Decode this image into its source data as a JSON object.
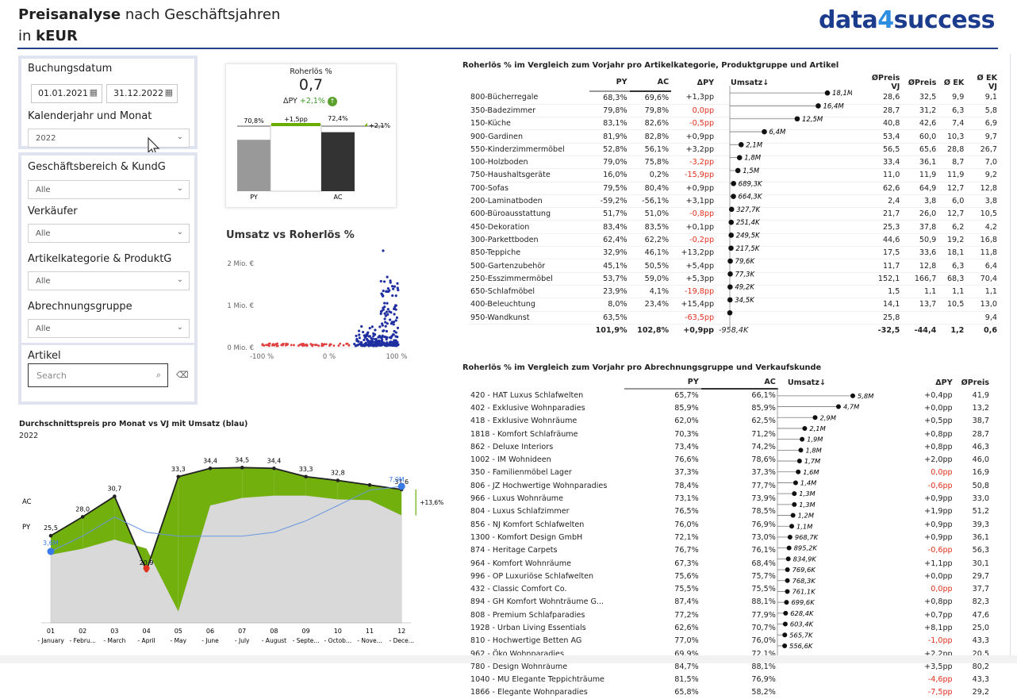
{
  "header": {
    "title_bold": "Preisanalyse",
    "title_rest": " nach Geschäftsjahren",
    "subtitle_pre": "in ",
    "subtitle_bold": "kEUR",
    "logo_a": "data",
    "logo_4": "4",
    "logo_b": "success"
  },
  "slicers": {
    "buchungsdatum": "Buchungsdatum",
    "date_from": "01.01.2021",
    "date_to": "31.12.2022",
    "kalender": "Kalenderjahr und Monat",
    "kalender_value": "2022",
    "gb": "Geschäftsbereich & KundG",
    "gb_value": "Alle",
    "verkaeufer": "Verkäufer",
    "verkaeufer_value": "Alle",
    "artkat": "Artikelkategorie & ProduktG",
    "artkat_value": "Alle",
    "abrechnung": "Abrechnungsgruppe",
    "abrechnung_value": "Alle",
    "artikel": "Artikel",
    "search_placeholder": "Search"
  },
  "kpi": {
    "title": "Roherlös %",
    "value": "0,7",
    "delta_label": "ΔPY",
    "delta_value": "+2,1%",
    "py_val": "70,8%",
    "diff": "+1,5pp",
    "ac_val": "72,4%",
    "ext": "+2,1%",
    "py": "PY",
    "ac": "AC",
    "chart_data": {
      "type": "bar",
      "categories": [
        "PY",
        "AC"
      ],
      "values": [
        70.8,
        72.4
      ]
    }
  },
  "scatter": {
    "title": "Umsatz vs Roherlös %",
    "y_ticks": [
      "2 Mio. €",
      "1 Mio. €",
      "0 Mio. €"
    ],
    "x_ticks": [
      "-100 %",
      "0 %",
      "100 %"
    ]
  },
  "line": {
    "title": "Durchschnittspreis pro Monat vs VJ mit Umsatz (blau)",
    "year": "2022",
    "ac": "AC",
    "py": "PY",
    "delta": "+13,6%",
    "u1": "3,6M",
    "u12": "7,0M",
    "chart_data": {
      "type": "line",
      "categories": [
        "01",
        "02",
        "03",
        "04",
        "05",
        "06",
        "07",
        "08",
        "09",
        "10",
        "11",
        "12"
      ],
      "cat_labels": [
        "- January",
        "- Febru...",
        "- March",
        "- April",
        "- May",
        "- June",
        "- July",
        "- August",
        "- Septe...",
        "- Octob...",
        "- Nove...",
        "- Dece..."
      ],
      "series": [
        {
          "name": "AC",
          "values": [
            25.5,
            28.0,
            30.7,
            20.9,
            33.3,
            34.4,
            34.5,
            34.4,
            33.3,
            32.8,
            null,
            31.6
          ]
        },
        {
          "name": "PY",
          "values": [
            23.0,
            23.8,
            25.0,
            23.8,
            15.5,
            29.5,
            30.5,
            30.8,
            30.8,
            30.3,
            30.2,
            28.2
          ]
        },
        {
          "name": "Umsatz",
          "values": [
            3.6,
            4.4,
            5.4,
            4.6,
            4.4,
            4.4,
            4.4,
            4.6,
            5.2,
            6.0,
            6.8,
            7.0
          ]
        }
      ],
      "labels": [
        "25,5",
        "28,0",
        "30,7",
        "20,9",
        "33,3",
        "34,4",
        "34,5",
        "34,4",
        "33,3",
        "32,8",
        "",
        "31,6"
      ]
    }
  },
  "table1": {
    "title": "Roherlös % im Vergleich zum Vorjahr pro Artikelkategorie, Produktgruppe und Artikel",
    "cols": [
      "PY",
      "AC",
      "ΔPY",
      "Umsatz↓",
      "ØPreis VJ",
      "ØPreis",
      "Ø EK",
      "Ø EK VJ"
    ],
    "rows": [
      [
        "800-Bücherregale",
        "68,3%",
        "69,6%",
        "+1,3pp",
        "18,1M",
        "28,6",
        "32,5",
        "9,9",
        "9,1"
      ],
      [
        "350-Badezimmer",
        "79,8%",
        "79,8%",
        "0,0pp",
        "16,4M",
        "28,7",
        "31,2",
        "6,3",
        "5,8"
      ],
      [
        "150-Küche",
        "83,1%",
        "82,6%",
        "-0,5pp",
        "12,5M",
        "40,8",
        "42,6",
        "7,4",
        "6,9"
      ],
      [
        "900-Gardinen",
        "81,9%",
        "82,8%",
        "+0,9pp",
        "6,4M",
        "53,4",
        "60,0",
        "10,3",
        "9,7"
      ],
      [
        "550-Kinderzimmermöbel",
        "52,8%",
        "56,1%",
        "+3,2pp",
        "2,1M",
        "56,5",
        "65,6",
        "28,8",
        "26,7"
      ],
      [
        "100-Holzboden",
        "79,0%",
        "75,8%",
        "-3,2pp",
        "1,8M",
        "33,4",
        "36,1",
        "8,7",
        "7,0"
      ],
      [
        "750-Haushaltsgeräte",
        "16,0%",
        "0,2%",
        "-15,9pp",
        "1,5M",
        "11,0",
        "11,9",
        "11,9",
        "9,2"
      ],
      [
        "700-Sofas",
        "79,5%",
        "80,4%",
        "+0,9pp",
        "689,3K",
        "62,6",
        "64,9",
        "12,7",
        "12,8"
      ],
      [
        "200-Laminatboden",
        "-59,2%",
        "-56,1%",
        "+3,1pp",
        "664,3K",
        "2,4",
        "3,8",
        "6,0",
        "3,8"
      ],
      [
        "600-Büroausstattung",
        "51,7%",
        "51,0%",
        "-0,8pp",
        "327,7K",
        "21,7",
        "26,0",
        "12,7",
        "10,5"
      ],
      [
        "450-Dekoration",
        "83,4%",
        "83,5%",
        "+0,1pp",
        "251,4K",
        "25,3",
        "37,8",
        "6,2",
        "4,2"
      ],
      [
        "300-Parkettboden",
        "62,4%",
        "62,2%",
        "-0,2pp",
        "249,5K",
        "44,6",
        "50,9",
        "19,2",
        "16,8"
      ],
      [
        "850-Teppiche",
        "32,9%",
        "46,1%",
        "+13,2pp",
        "217,5K",
        "17,5",
        "33,6",
        "18,1",
        "11,8"
      ],
      [
        "500-Gartenzubehör",
        "45,1%",
        "50,5%",
        "+5,4pp",
        "79,6K",
        "11,7",
        "12,8",
        "6,3",
        "6,4"
      ],
      [
        "250-Esszimmermöbel",
        "53,7%",
        "59,0%",
        "+5,3pp",
        "77,3K",
        "152,1",
        "166,7",
        "68,3",
        "70,4"
      ],
      [
        "650-Schlafmöbel",
        "23,9%",
        "4,1%",
        "-19,8pp",
        "49,2K",
        "1,5",
        "1,1",
        "1,1",
        "1,1"
      ],
      [
        "400-Beleuchtung",
        "8,0%",
        "23,4%",
        "+15,4pp",
        "34,5K",
        "14,1",
        "13,7",
        "10,5",
        "13,0"
      ],
      [
        "950-Wandkunst",
        "63,5%",
        "",
        "-63,5pp",
        "",
        "25,8",
        "",
        "",
        "9,4"
      ]
    ],
    "umsatz_m": [
      18.1,
      16.4,
      12.5,
      6.4,
      2.1,
      1.8,
      1.5,
      0.689,
      0.664,
      0.328,
      0.251,
      0.25,
      0.218,
      0.08,
      0.077,
      0.049,
      0.035,
      0
    ],
    "total": [
      "",
      "101,9%",
      "102,8%",
      "+0,9pp",
      "-958,4K",
      "-32,5",
      "-44,4",
      "1,2",
      "0,6"
    ]
  },
  "table2": {
    "title": "Roherlös % im Vergleich zum Vorjahr pro Abrechnungsgruppe und Verkaufskunde",
    "cols": [
      "PY",
      "AC",
      "Umsatz↓",
      "ΔPY",
      "ØPreis"
    ],
    "rows": [
      [
        "420 - HAT Luxus Schlafwelten",
        "65,7%",
        "66,1%",
        "5,8M",
        "+0,4pp",
        "41,9"
      ],
      [
        "402 - Exklusive Wohnparadies",
        "85,9%",
        "85,9%",
        "4,7M",
        "+0,0pp",
        "13,2"
      ],
      [
        "418 - Exklusive Wohnräume",
        "62,0%",
        "62,5%",
        "2,9M",
        "+0,5pp",
        "38,7"
      ],
      [
        "1818 - Komfort Schlafräume",
        "70,3%",
        "71,2%",
        "2,1M",
        "+0,8pp",
        "28,7"
      ],
      [
        "862 - Deluxe Interiors",
        "73,4%",
        "74,2%",
        "1,9M",
        "+0,8pp",
        "46,3"
      ],
      [
        "1002 - IM Wohnideen",
        "76,6%",
        "78,6%",
        "1,8M",
        "+2,0pp",
        "46,0"
      ],
      [
        "350 - Familienmöbel Lager",
        "37,3%",
        "37,3%",
        "1,7M",
        "0,0pp",
        "16,9"
      ],
      [
        "806 - JZ Hochwertige Wohnparadies",
        "78,4%",
        "77,7%",
        "1,6M",
        "-0,6pp",
        "50,8"
      ],
      [
        "966 - Luxus Wohnräume",
        "73,1%",
        "73,9%",
        "1,4M",
        "+0,9pp",
        "33,0"
      ],
      [
        "804 - Luxus Schlafzimmer",
        "76,5%",
        "78,5%",
        "1,3M",
        "+1,9pp",
        "51,2"
      ],
      [
        "856 - NJ Komfort Schlafwelten",
        "76,0%",
        "76,9%",
        "1,3M",
        "+0,9pp",
        "39,3"
      ],
      [
        "1300 - Komfort Design GmbH",
        "72,1%",
        "73,0%",
        "1,2M",
        "+0,9pp",
        "36,1"
      ],
      [
        "874 - Heritage Carpets",
        "76,7%",
        "76,1%",
        "1,1M",
        "-0,6pp",
        "56,3"
      ],
      [
        "964 - Komfort Wohnräume",
        "67,3%",
        "68,4%",
        "968,7K",
        "+1,1pp",
        "30,1"
      ],
      [
        "996 - OP Luxuriöse Schlafwelten",
        "75,6%",
        "75,7%",
        "895,2K",
        "+0,0pp",
        "29,7"
      ],
      [
        "432 - Classic Comfort Co.",
        "75,5%",
        "75,5%",
        "834,9K",
        "0,0pp",
        "37,7"
      ],
      [
        "894 - GH Komfort Wohnträume G...",
        "87,4%",
        "88,1%",
        "769,6K",
        "+0,8pp",
        "82,3"
      ],
      [
        "808 - Premium Schlafparadies",
        "77,2%",
        "77,9%",
        "768,3K",
        "+0,7pp",
        "47,6"
      ],
      [
        "1928 - Urban Living Essentials",
        "62,6%",
        "70,7%",
        "761,1K",
        "+8,1pp",
        "25,0"
      ],
      [
        "810 - Hochwertige Betten AG",
        "77,0%",
        "76,0%",
        "699,6K",
        "-1,0pp",
        "43,3"
      ],
      [
        "962 - Öko Wohnparadies",
        "69,9%",
        "72,1%",
        "628,4K",
        "+2,2pp",
        "20,5"
      ],
      [
        "780 - Design Wohnräume",
        "84,7%",
        "88,1%",
        "603,4K",
        "+3,5pp",
        "80,2"
      ],
      [
        "1040 - MU Elegante Teppichträume",
        "81,5%",
        "76,9%",
        "565,7K",
        "-4,6pp",
        "43,3"
      ],
      [
        "1866 - Elegante Wohnparadies",
        "65,8%",
        "58,2%",
        "556,6K",
        "-7,5pp",
        "29,2"
      ]
    ],
    "umsatz_m": [
      5.8,
      4.7,
      2.9,
      2.1,
      1.9,
      1.8,
      1.7,
      1.6,
      1.4,
      1.3,
      1.3,
      1.2,
      1.1,
      0.969,
      0.895,
      0.835,
      0.77,
      0.768,
      0.761,
      0.7,
      0.628,
      0.603,
      0.566,
      0.557
    ]
  },
  "colors": {
    "navy": "#1b3b8c",
    "green": "#6aad00",
    "red": "#e0301e",
    "blue": "#1f3fa8",
    "grey": "#8a8a8a"
  }
}
